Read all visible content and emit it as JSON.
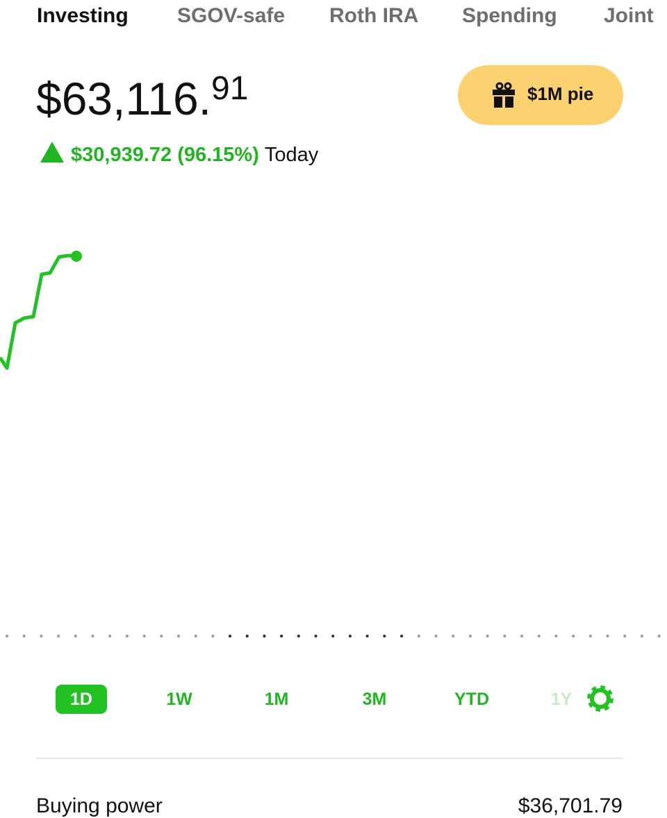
{
  "tabs": [
    "Investing",
    "SGOV-safe",
    "Roth IRA",
    "Spending",
    "Joint"
  ],
  "balance": {
    "main": "$63,116.",
    "cents": "91"
  },
  "change": {
    "amount": "$30,939.72 (96.15%)",
    "period": "Today"
  },
  "promo_button": "$1M pie",
  "ranges": [
    "1D",
    "1W",
    "1M",
    "3M",
    "YTD",
    "1Y"
  ],
  "buying_power": {
    "label": "Buying power",
    "value": "$36,701.79"
  }
}
